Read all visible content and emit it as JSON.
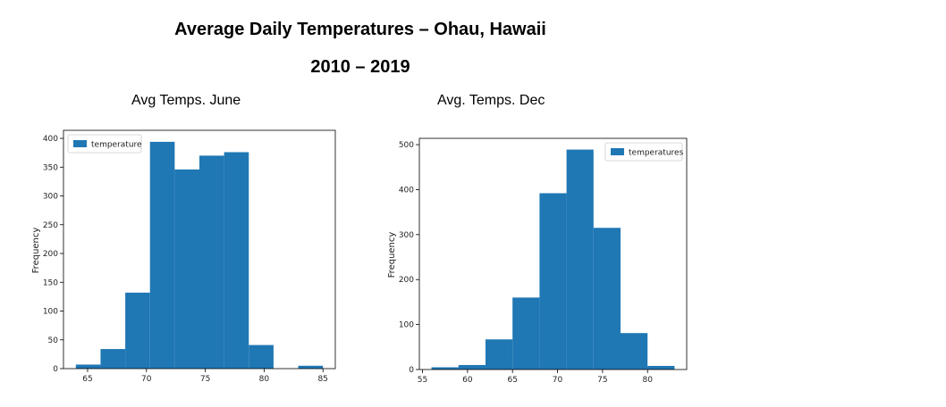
{
  "title_line1": "Average Daily Temperatures – Ohau, Hawaii",
  "title_line2": "2010 – 2019",
  "chart_data": [
    {
      "type": "bar",
      "subtitle": "Avg Temps. June",
      "ylabel": "Frequency",
      "legend": "temperature",
      "legend_position": "top-left",
      "color": "#1f77b4",
      "bin_edges": [
        64.0,
        66.1,
        68.2,
        70.3,
        72.4,
        74.5,
        76.6,
        78.7,
        80.8,
        82.9,
        85.0
      ],
      "values": [
        7,
        34,
        132,
        394,
        346,
        370,
        376,
        41,
        0,
        5
      ],
      "xlim": [
        62.95,
        86.05
      ],
      "ylim": [
        0,
        414
      ],
      "xticks": [
        65,
        70,
        75,
        80,
        85
      ],
      "yticks": [
        0,
        50,
        100,
        150,
        200,
        250,
        300,
        350,
        400
      ]
    },
    {
      "type": "bar",
      "subtitle": "Avg. Temps. Dec",
      "ylabel": "Frequency",
      "legend": "temperatures",
      "legend_position": "top-right",
      "color": "#1f77b4",
      "bin_edges": [
        56.0,
        59.0,
        62.0,
        65.0,
        68.0,
        71.0,
        74.0,
        77.0,
        80.0,
        83.0
      ],
      "values": [
        5,
        10,
        67,
        160,
        392,
        489,
        315,
        81,
        8
      ],
      "xlim": [
        54.65,
        84.35
      ],
      "ylim": [
        0,
        514
      ],
      "xticks": [
        55,
        60,
        65,
        70,
        75,
        80
      ],
      "yticks": [
        0,
        100,
        200,
        300,
        400,
        500
      ]
    }
  ]
}
